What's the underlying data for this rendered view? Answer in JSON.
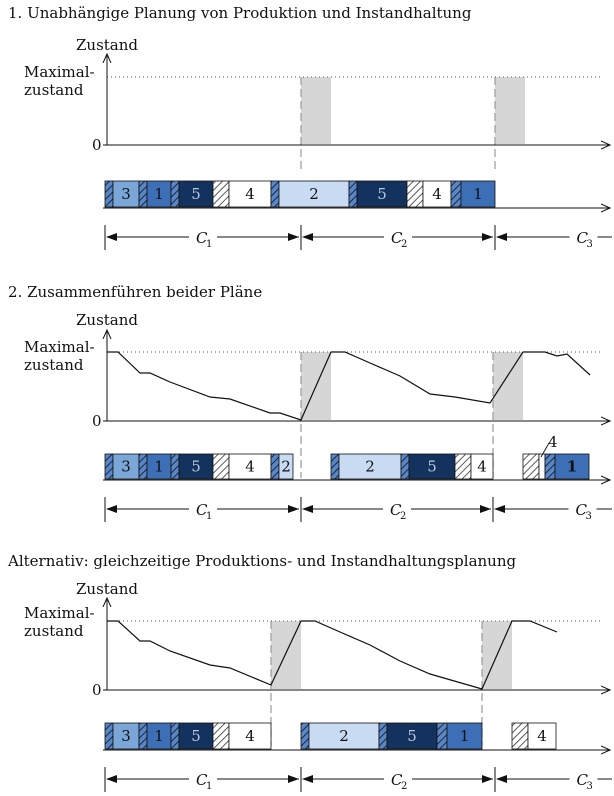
{
  "sections": [
    {
      "title": "1. Unabhängige Planung von Produktion und Instandhaltung",
      "axis": {
        "y_label": "Zustand",
        "max_label_1": "Maximal-",
        "max_label_2": "zustand",
        "zero_label": "0"
      },
      "maintenance_windows": [
        [
          301,
          331
        ],
        [
          495,
          525
        ]
      ],
      "curve": [],
      "jobs": [
        {
          "type": "setup",
          "x": 105,
          "w": 8
        },
        {
          "type": "job",
          "x": 113,
          "w": 26,
          "label": "3",
          "color": "#7aa6d8"
        },
        {
          "type": "setup",
          "x": 139,
          "w": 8
        },
        {
          "type": "job",
          "x": 147,
          "w": 24,
          "label": "1",
          "color": "#3c6fb6"
        },
        {
          "type": "setup",
          "x": 171,
          "w": 8
        },
        {
          "type": "job",
          "x": 179,
          "w": 34,
          "label": "5",
          "color": "#13325e"
        },
        {
          "type": "setup",
          "x": 213,
          "w": 16
        },
        {
          "type": "job",
          "x": 229,
          "w": 42,
          "label": "4",
          "color": "#ffffff"
        },
        {
          "type": "setup",
          "x": 271,
          "w": 8
        },
        {
          "type": "job",
          "x": 279,
          "w": 70,
          "label": "2",
          "color": "#c9dbf2"
        },
        {
          "type": "setup",
          "x": 349,
          "w": 8
        },
        {
          "type": "job",
          "x": 357,
          "w": 50,
          "label": "5",
          "color": "#13325e"
        },
        {
          "type": "setup",
          "x": 407,
          "w": 16
        },
        {
          "type": "job",
          "x": 423,
          "w": 28,
          "label": "4",
          "color": "#ffffff"
        },
        {
          "type": "setup",
          "x": 451,
          "w": 10
        },
        {
          "type": "job",
          "x": 461,
          "w": 34,
          "label": "1",
          "color": "#3c6fb6"
        }
      ],
      "cycles": [
        {
          "label": "C",
          "sub": "1"
        },
        {
          "label": "C",
          "sub": "2"
        },
        {
          "label": "C",
          "sub": "3"
        }
      ]
    },
    {
      "title": "2. Zusammenführen beider Pläne",
      "axis": {
        "y_label": "Zustand",
        "max_label_1": "Maximal-",
        "max_label_2": "zustand",
        "zero_label": "0"
      },
      "maintenance_windows": [
        [
          301,
          331
        ],
        [
          493,
          523
        ]
      ],
      "curve": [
        [
          107,
          352
        ],
        [
          118,
          352
        ],
        [
          140,
          373
        ],
        [
          150,
          373
        ],
        [
          170,
          382
        ],
        [
          210,
          397
        ],
        [
          230,
          399
        ],
        [
          270,
          413
        ],
        [
          280,
          413
        ],
        [
          301,
          420
        ],
        [
          331,
          352
        ],
        [
          345,
          352
        ],
        [
          370,
          363
        ],
        [
          400,
          376
        ],
        [
          430,
          394
        ],
        [
          455,
          397
        ],
        [
          490,
          403
        ],
        [
          523,
          352
        ],
        [
          545,
          352
        ],
        [
          557,
          356
        ],
        [
          567,
          354
        ],
        [
          590,
          375
        ]
      ],
      "jobs": [
        {
          "type": "setup",
          "x": 105,
          "w": 8
        },
        {
          "type": "job",
          "x": 113,
          "w": 26,
          "label": "3",
          "color": "#7aa6d8"
        },
        {
          "type": "setup",
          "x": 139,
          "w": 8
        },
        {
          "type": "job",
          "x": 147,
          "w": 24,
          "label": "1",
          "color": "#3c6fb6"
        },
        {
          "type": "setup",
          "x": 171,
          "w": 8
        },
        {
          "type": "job",
          "x": 179,
          "w": 34,
          "label": "5",
          "color": "#13325e"
        },
        {
          "type": "setup",
          "x": 213,
          "w": 16
        },
        {
          "type": "job",
          "x": 229,
          "w": 42,
          "label": "4",
          "color": "#ffffff"
        },
        {
          "type": "setup",
          "x": 271,
          "w": 8
        },
        {
          "type": "job",
          "x": 279,
          "w": 14,
          "label": "2",
          "color": "#c9dbf2"
        },
        {
          "type": "setup",
          "x": 331,
          "w": 8
        },
        {
          "type": "job",
          "x": 339,
          "w": 62,
          "label": "2",
          "color": "#c9dbf2"
        },
        {
          "type": "setup",
          "x": 401,
          "w": 8
        },
        {
          "type": "job",
          "x": 409,
          "w": 46,
          "label": "5",
          "color": "#13325e"
        },
        {
          "type": "setup",
          "x": 455,
          "w": 16
        },
        {
          "type": "job",
          "x": 471,
          "w": 22,
          "label": "4",
          "color": "#ffffff"
        },
        {
          "type": "setup",
          "x": 523,
          "w": 16
        },
        {
          "type": "job",
          "x": 539,
          "w": 6,
          "label": "",
          "color": "#ffffff"
        },
        {
          "type": "setup",
          "x": 545,
          "w": 10
        },
        {
          "type": "job",
          "x": 555,
          "w": 34,
          "label": "1",
          "color": "#3c6fb6",
          "bold": true
        }
      ],
      "callout_label": "4",
      "cycles": [
        {
          "label": "C",
          "sub": "1"
        },
        {
          "label": "C",
          "sub": "2"
        },
        {
          "label": "C",
          "sub": "3"
        }
      ]
    },
    {
      "title": "Alternativ: gleichzeitige Produktions- und Instandhaltungsplanung",
      "axis": {
        "y_label": "Zustand",
        "max_label_1": "Maximal-",
        "max_label_2": "zustand",
        "zero_label": "0"
      },
      "maintenance_windows": [
        [
          271,
          301
        ],
        [
          482,
          512
        ]
      ],
      "curve": [
        [
          107,
          621
        ],
        [
          118,
          621
        ],
        [
          140,
          641
        ],
        [
          150,
          641
        ],
        [
          170,
          651
        ],
        [
          210,
          665
        ],
        [
          230,
          668
        ],
        [
          271,
          685
        ],
        [
          301,
          621
        ],
        [
          315,
          621
        ],
        [
          340,
          632
        ],
        [
          370,
          645
        ],
        [
          400,
          661
        ],
        [
          430,
          674
        ],
        [
          482,
          689
        ],
        [
          512,
          621
        ],
        [
          530,
          621
        ],
        [
          557,
          632
        ]
      ],
      "jobs": [
        {
          "type": "setup",
          "x": 105,
          "w": 8
        },
        {
          "type": "job",
          "x": 113,
          "w": 26,
          "label": "3",
          "color": "#7aa6d8"
        },
        {
          "type": "setup",
          "x": 139,
          "w": 8
        },
        {
          "type": "job",
          "x": 147,
          "w": 24,
          "label": "1",
          "color": "#3c6fb6"
        },
        {
          "type": "setup",
          "x": 171,
          "w": 8
        },
        {
          "type": "job",
          "x": 179,
          "w": 34,
          "label": "5",
          "color": "#13325e"
        },
        {
          "type": "setup",
          "x": 213,
          "w": 16
        },
        {
          "type": "job",
          "x": 229,
          "w": 42,
          "label": "4",
          "color": "#ffffff"
        },
        {
          "type": "setup",
          "x": 301,
          "w": 8
        },
        {
          "type": "job",
          "x": 309,
          "w": 70,
          "label": "2",
          "color": "#c9dbf2"
        },
        {
          "type": "setup",
          "x": 379,
          "w": 8
        },
        {
          "type": "job",
          "x": 387,
          "w": 50,
          "label": "5",
          "color": "#13325e"
        },
        {
          "type": "setup",
          "x": 437,
          "w": 10
        },
        {
          "type": "job",
          "x": 447,
          "w": 35,
          "label": "1",
          "color": "#3c6fb6"
        },
        {
          "type": "setup",
          "x": 512,
          "w": 16
        },
        {
          "type": "job",
          "x": 528,
          "w": 28,
          "label": "4",
          "color": "#ffffff"
        }
      ],
      "cycles": [
        {
          "label": "C",
          "sub": "1"
        },
        {
          "label": "C",
          "sub": "2"
        },
        {
          "label": "C",
          "sub": "3"
        }
      ]
    }
  ]
}
